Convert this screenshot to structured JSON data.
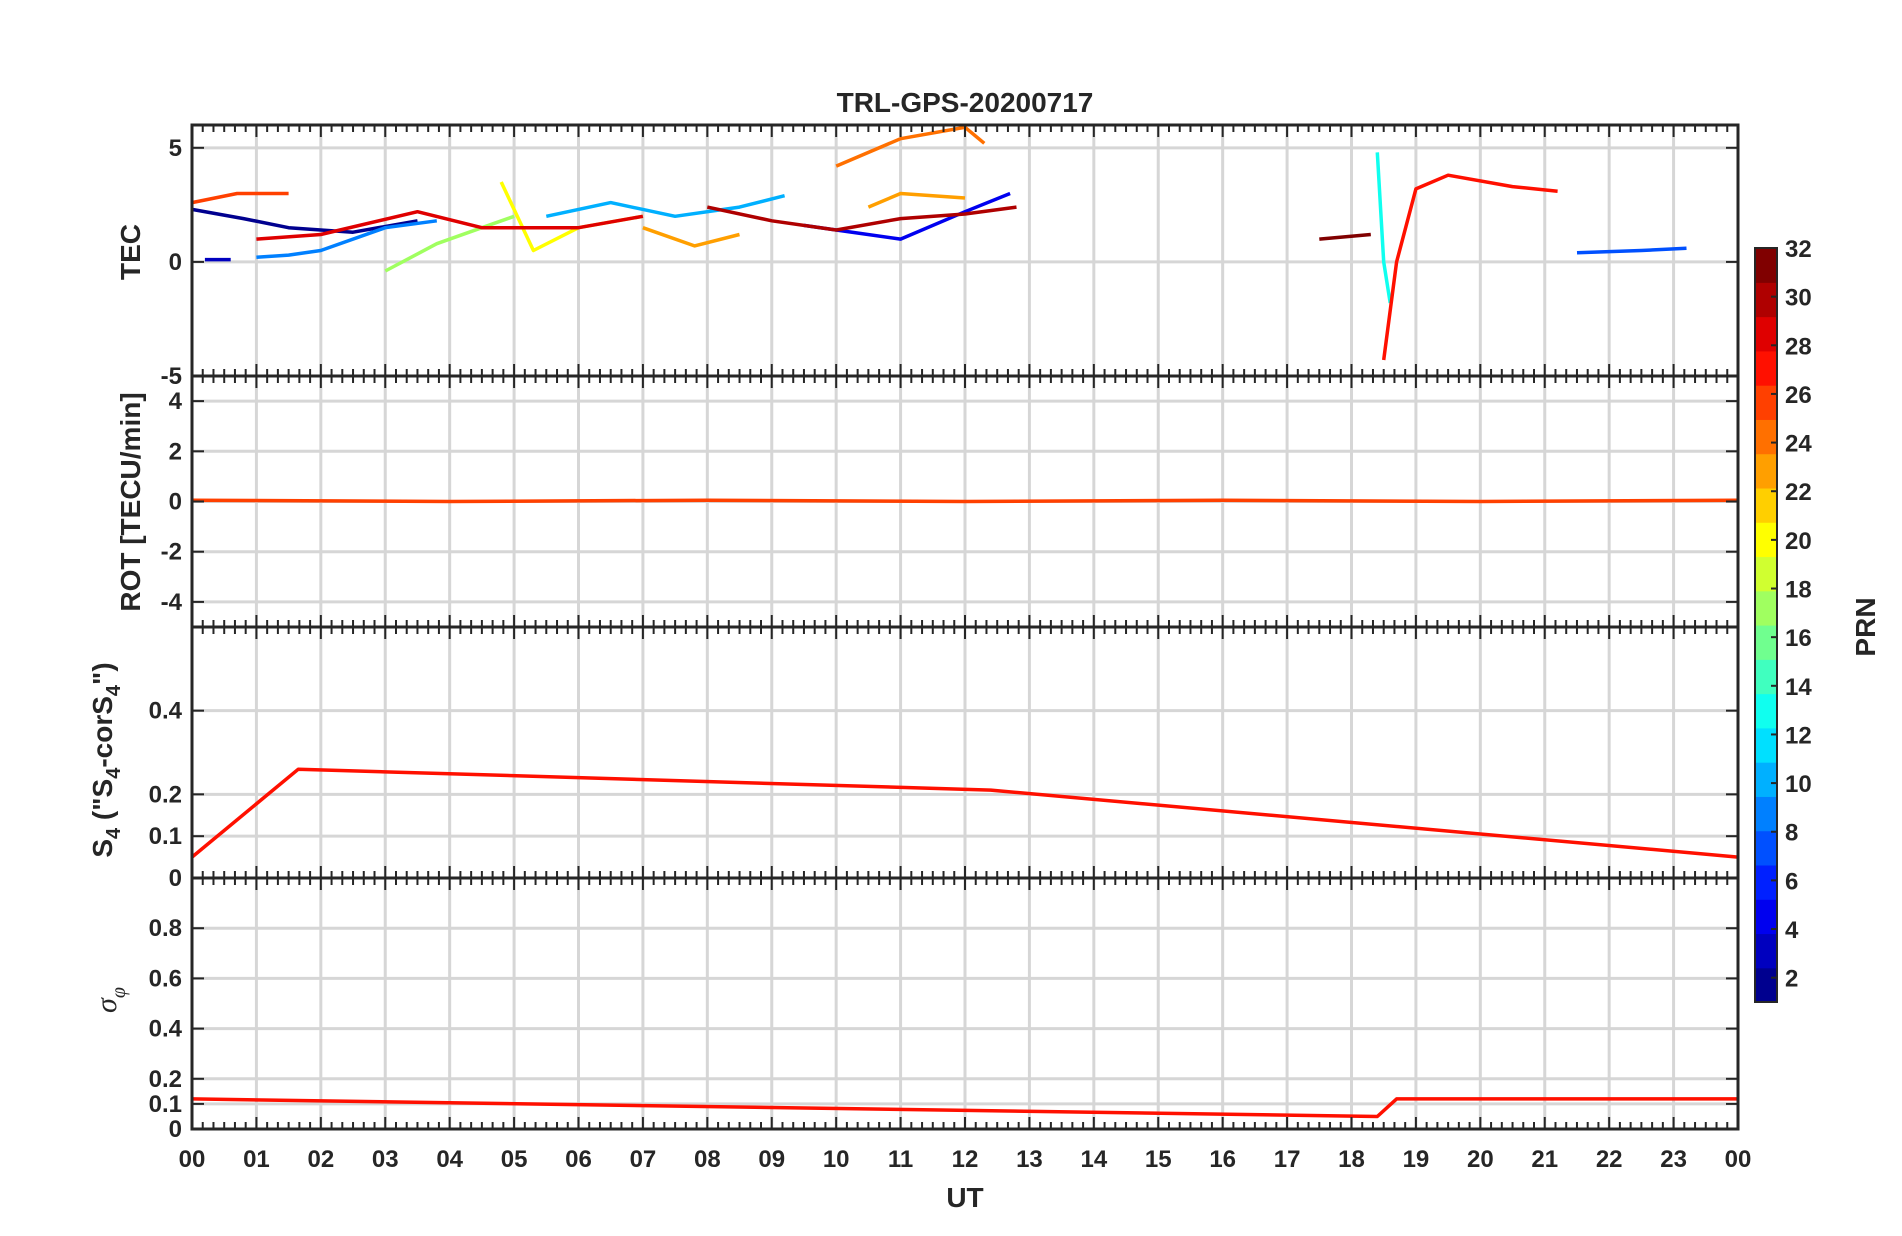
{
  "chart_data": {
    "type": "line",
    "title": "TRL-GPS-20200717",
    "xlabel": "UT",
    "x_tick_labels": [
      "00",
      "01",
      "02",
      "03",
      "04",
      "05",
      "06",
      "07",
      "08",
      "09",
      "10",
      "11",
      "12",
      "13",
      "14",
      "15",
      "16",
      "17",
      "18",
      "19",
      "20",
      "21",
      "22",
      "23",
      "00"
    ],
    "xlim": [
      0,
      24
    ],
    "colorbar": {
      "label": "PRN",
      "range": [
        1,
        32
      ],
      "tick_labels": [
        "2",
        "4",
        "6",
        "8",
        "10",
        "12",
        "14",
        "16",
        "18",
        "20",
        "22",
        "24",
        "26",
        "28",
        "30",
        "32"
      ],
      "colors": [
        "#00008f",
        "#0000bf",
        "#0000ef",
        "#0020ff",
        "#0050ff",
        "#0080ff",
        "#00b0ff",
        "#00e0ff",
        "#10ffef",
        "#40ffbf",
        "#70ff8f",
        "#a0ff60",
        "#d0ff30",
        "#ffff00",
        "#ffcf00",
        "#ff9f00",
        "#ff7000",
        "#ff4000",
        "#ff1000",
        "#df0000",
        "#af0000",
        "#800000"
      ]
    },
    "panels": [
      {
        "id": "tec",
        "ylabel": "TEC",
        "ylim": [
          -5,
          6
        ],
        "yticks": [
          -5,
          0,
          5
        ],
        "ytick_labels": [
          "-5",
          "0",
          "5"
        ],
        "series": [
          {
            "prn": 1,
            "x": [
              0,
              0.8,
              1.5,
              2.5,
              3.5
            ],
            "y": [
              2.3,
              1.9,
              1.5,
              1.3,
              1.8
            ]
          },
          {
            "prn": 3,
            "x": [
              0.2,
              0.6
            ],
            "y": [
              0.1,
              0.1
            ]
          },
          {
            "prn": 5,
            "x": [
              9.5,
              10,
              11,
              12,
              12.7
            ],
            "y": [
              1.6,
              1.4,
              1.0,
              2.2,
              3.0
            ]
          },
          {
            "prn": 7,
            "x": [
              21.5,
              22.5,
              23.2
            ],
            "y": [
              0.4,
              0.5,
              0.6
            ]
          },
          {
            "prn": 9,
            "x": [
              1,
              1.5,
              2,
              3,
              3.8
            ],
            "y": [
              0.2,
              0.3,
              0.5,
              1.5,
              1.8
            ]
          },
          {
            "prn": 11,
            "x": [
              5.5,
              6,
              6.5,
              7.5,
              8.5,
              9.2
            ],
            "y": [
              2.0,
              2.3,
              2.6,
              2.0,
              2.4,
              2.9
            ]
          },
          {
            "prn": 13,
            "x": [
              18.4,
              18.5,
              18.6
            ],
            "y": [
              4.8,
              0,
              -1.8
            ]
          },
          {
            "prn": 17,
            "x": [
              3,
              3.8,
              4.5,
              5
            ],
            "y": [
              -0.4,
              0.8,
              1.5,
              2.0
            ]
          },
          {
            "prn": 21,
            "x": [
              4.8,
              5.3,
              6,
              7
            ],
            "y": [
              3.5,
              0.5,
              1.5,
              2.0
            ]
          },
          {
            "prn": 23,
            "x": [
              10.5,
              11,
              12
            ],
            "y": [
              2.4,
              3.0,
              2.8
            ]
          },
          {
            "prn": 24,
            "x": [
              7,
              7.8,
              8.5
            ],
            "y": [
              1.5,
              0.7,
              1.2
            ]
          },
          {
            "prn": 25,
            "x": [
              10,
              11,
              12,
              12.3
            ],
            "y": [
              4.2,
              5.4,
              5.9,
              5.2
            ]
          },
          {
            "prn": 27,
            "x": [
              0,
              0.7,
              1.5
            ],
            "y": [
              2.6,
              3.0,
              3.0
            ]
          },
          {
            "prn": 28,
            "x": [
              18.5,
              18.7,
              19,
              19.5,
              20.5,
              21.2
            ],
            "y": [
              -4.3,
              0,
              3.2,
              3.8,
              3.3,
              3.1
            ]
          },
          {
            "prn": 29,
            "x": [
              1,
              2,
              3.5,
              4.5,
              6,
              7
            ],
            "y": [
              1.0,
              1.2,
              2.2,
              1.5,
              1.5,
              2.0
            ]
          },
          {
            "prn": 31,
            "x": [
              8,
              9,
              10,
              11,
              12,
              12.8
            ],
            "y": [
              2.4,
              1.8,
              1.4,
              1.9,
              2.1,
              2.4
            ]
          },
          {
            "prn": 32,
            "x": [
              17.5,
              18.3
            ],
            "y": [
              1.0,
              1.2
            ]
          }
        ]
      },
      {
        "id": "rot",
        "ylabel": "ROT [TECU/min]",
        "ylim": [
          -5,
          5
        ],
        "yticks": [
          -4,
          -2,
          0,
          2,
          4
        ],
        "ytick_labels": [
          "-4",
          "-2",
          "0",
          "2",
          "4"
        ],
        "series": [
          {
            "prn": 27,
            "x": [
              0,
              4,
              8,
              12,
              16,
              20,
              24
            ],
            "y": [
              0.05,
              0,
              0.05,
              0,
              0.05,
              0,
              0.05
            ]
          }
        ]
      },
      {
        "id": "s4",
        "ylabel": "S4 (\"S4-corS4\")",
        "ylim": [
          0,
          0.6
        ],
        "yticks": [
          0,
          0.1,
          0.2,
          0.4
        ],
        "ytick_labels": [
          "0",
          "0.1",
          "0.2",
          "0.4"
        ],
        "series": [
          {
            "prn": 28,
            "x": [
              0,
              1.65,
              12.4,
              24
            ],
            "y": [
              0.05,
              0.26,
              0.21,
              0.05
            ]
          }
        ]
      },
      {
        "id": "sigma",
        "ylabel": "σφ",
        "ylim": [
          0,
          1
        ],
        "yticks": [
          0,
          0.1,
          0.2,
          0.4,
          0.6,
          0.8
        ],
        "ytick_labels": [
          "0",
          "0.1",
          "0.2",
          "0.4",
          "0.6",
          "0.8"
        ],
        "series": [
          {
            "prn": 28,
            "x": [
              0,
              18.4,
              18.7,
              24
            ],
            "y": [
              0.12,
              0.05,
              0.12,
              0.12
            ]
          }
        ]
      }
    ]
  }
}
